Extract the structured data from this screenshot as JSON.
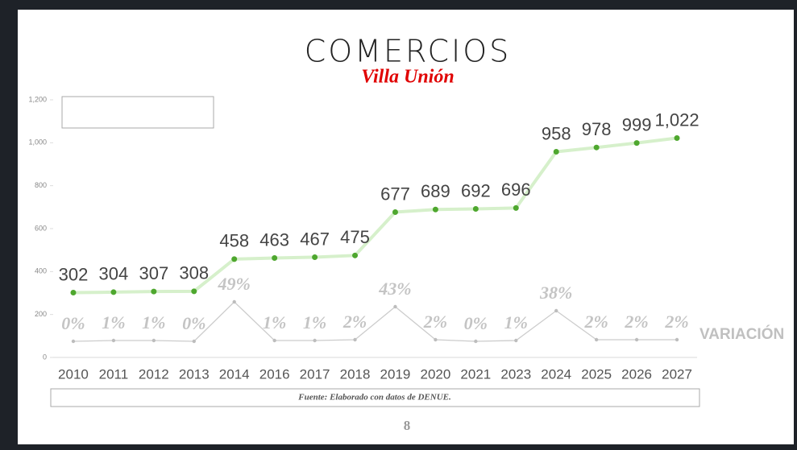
{
  "chart_data": {
    "type": "line",
    "title": "COMERCIOS",
    "subtitle": "Villa Unión",
    "categories": [
      "2010",
      "2011",
      "2012",
      "2013",
      "2014",
      "2016",
      "2017",
      "2018",
      "2019",
      "2020",
      "2021",
      "2023",
      "2024",
      "2025",
      "2026",
      "2027"
    ],
    "series": [
      {
        "color": "#4ea72e",
        "line_color": "#d6f0cb",
        "values": [
          302,
          304,
          307,
          308,
          458,
          463,
          467,
          475,
          677,
          689,
          692,
          696,
          958,
          978,
          999,
          1022
        ],
        "value_labels": [
          "302",
          "304",
          "307",
          "308",
          "458",
          "463",
          "467",
          "475",
          "677",
          "689",
          "692",
          "696",
          "958",
          "978",
          "999",
          "1,022"
        ]
      },
      {
        "name": "VARIACIÓN",
        "axis": "y2",
        "color": "#bdbdbd",
        "line_color": "#cccccc",
        "values": [
          0,
          1,
          1,
          0,
          49,
          1,
          1,
          2,
          43,
          2,
          0,
          1,
          38,
          2,
          2,
          2
        ],
        "value_labels": [
          "0%",
          "1%",
          "1%",
          "0%",
          "49%",
          "1%",
          "1%",
          "2%",
          "43%",
          "2%",
          "0%",
          "1%",
          "38%",
          "2%",
          "2%",
          "2%"
        ]
      }
    ],
    "ylim": [
      0,
      1200
    ],
    "yticks": [
      0,
      200,
      400,
      600,
      800,
      {
        "value": 1000,
        "label": "1,000"
      },
      {
        "value": 1200,
        "label": "1,200"
      }
    ],
    "y2lim": [
      -20,
      300
    ],
    "grid": false
  },
  "footer": {
    "source": "Fuente: Elaborado con datos de DENUE.",
    "page": "8"
  }
}
